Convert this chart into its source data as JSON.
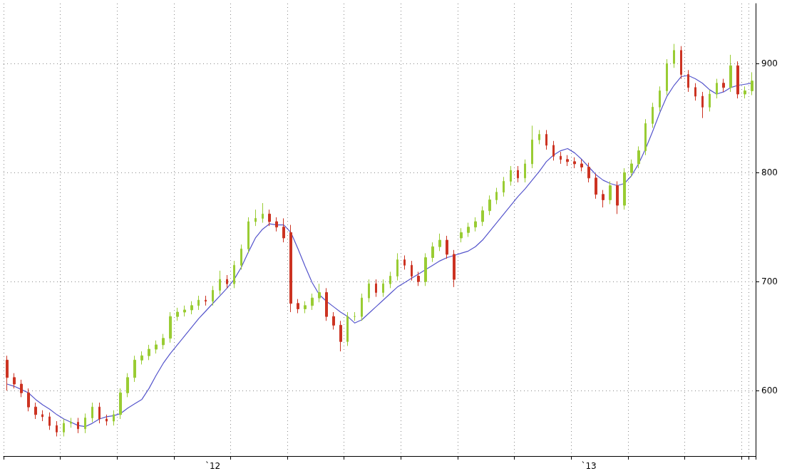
{
  "chart_data": {
    "type": "candlestick",
    "categories": [
      null,
      null,
      null,
      null,
      null,
      null,
      null,
      null,
      null,
      null,
      null,
      null,
      null,
      null,
      null,
      null,
      null,
      null,
      null,
      null,
      null,
      null,
      null,
      null,
      null,
      null,
      null,
      null,
      null,
      "`12",
      null,
      null,
      null,
      null,
      null,
      null,
      null,
      null,
      null,
      null,
      null,
      null,
      null,
      null,
      null,
      null,
      null,
      null,
      null,
      null,
      null,
      null,
      null,
      null,
      null,
      null,
      null,
      null,
      null,
      null,
      null,
      null,
      null,
      null,
      null,
      null,
      null,
      null,
      null,
      null,
      null,
      null,
      null,
      null,
      null,
      null,
      null,
      null,
      null,
      null,
      null,
      null,
      "`13",
      null,
      null,
      null,
      null,
      null,
      null,
      null,
      null,
      null,
      null,
      null,
      null,
      null,
      null,
      null,
      null,
      null,
      null,
      null,
      null,
      null,
      null,
      null
    ],
    "ylim": [
      540,
      955
    ],
    "yticks": [
      600,
      700,
      800,
      900
    ],
    "grid": true,
    "series": [
      {
        "ohlc": [
          [
            628,
            632,
            600,
            612
          ],
          [
            612,
            616,
            602,
            606
          ],
          [
            606,
            610,
            594,
            598
          ],
          [
            598,
            602,
            581,
            585
          ],
          [
            585,
            589,
            574,
            578
          ],
          [
            578,
            582,
            572,
            576
          ],
          [
            576,
            580,
            564,
            568
          ],
          [
            568,
            572,
            558,
            562
          ],
          [
            562,
            574,
            558,
            570
          ],
          [
            570,
            575,
            566,
            571
          ],
          [
            571,
            575,
            561,
            565
          ],
          [
            565,
            579,
            561,
            575
          ],
          [
            575,
            589,
            571,
            585
          ],
          [
            585,
            589,
            570,
            574
          ],
          [
            574,
            578,
            568,
            572
          ],
          [
            572,
            582,
            568,
            578
          ],
          [
            578,
            602,
            574,
            598
          ],
          [
            598,
            616,
            594,
            612
          ],
          [
            612,
            632,
            608,
            628
          ],
          [
            628,
            636,
            624,
            632
          ],
          [
            632,
            642,
            628,
            638
          ],
          [
            638,
            646,
            634,
            642
          ],
          [
            642,
            652,
            638,
            648
          ],
          [
            648,
            672,
            644,
            668
          ],
          [
            668,
            676,
            664,
            672
          ],
          [
            672,
            678,
            668,
            674
          ],
          [
            674,
            682,
            670,
            678
          ],
          [
            678,
            687,
            674,
            683
          ],
          [
            683,
            687,
            678,
            682
          ],
          [
            682,
            696,
            678,
            692
          ],
          [
            692,
            710,
            688,
            702
          ],
          [
            702,
            706,
            694,
            698
          ],
          [
            698,
            719,
            694,
            715
          ],
          [
            715,
            734,
            711,
            730
          ],
          [
            730,
            759,
            726,
            755
          ],
          [
            755,
            766,
            751,
            758
          ],
          [
            758,
            772,
            754,
            762
          ],
          [
            762,
            766,
            751,
            755
          ],
          [
            755,
            759,
            746,
            750
          ],
          [
            750,
            758,
            736,
            740
          ],
          [
            745,
            752,
            672,
            680
          ],
          [
            680,
            684,
            671,
            675
          ],
          [
            675,
            682,
            671,
            678
          ],
          [
            678,
            689,
            674,
            685
          ],
          [
            685,
            698,
            681,
            690
          ],
          [
            690,
            694,
            664,
            668
          ],
          [
            668,
            672,
            656,
            660
          ],
          [
            660,
            664,
            636,
            645
          ],
          [
            645,
            672,
            641,
            668
          ],
          [
            668,
            672,
            664,
            668
          ],
          [
            668,
            689,
            664,
            685
          ],
          [
            685,
            702,
            681,
            698
          ],
          [
            698,
            702,
            686,
            690
          ],
          [
            690,
            702,
            686,
            698
          ],
          [
            698,
            709,
            694,
            705
          ],
          [
            705,
            726,
            701,
            720
          ],
          [
            720,
            724,
            711,
            715
          ],
          [
            715,
            719,
            701,
            705
          ],
          [
            705,
            709,
            696,
            700
          ],
          [
            700,
            726,
            696,
            722
          ],
          [
            722,
            736,
            718,
            732
          ],
          [
            732,
            744,
            728,
            738
          ],
          [
            738,
            742,
            721,
            725
          ],
          [
            725,
            729,
            695,
            702
          ],
          [
            740,
            749,
            736,
            745
          ],
          [
            745,
            754,
            741,
            750
          ],
          [
            750,
            759,
            746,
            755
          ],
          [
            755,
            769,
            751,
            765
          ],
          [
            765,
            779,
            761,
            775
          ],
          [
            775,
            786,
            771,
            782
          ],
          [
            782,
            796,
            778,
            792
          ],
          [
            792,
            806,
            788,
            802
          ],
          [
            802,
            806,
            791,
            795
          ],
          [
            795,
            812,
            791,
            808
          ],
          [
            808,
            843,
            804,
            830
          ],
          [
            830,
            839,
            826,
            835
          ],
          [
            835,
            839,
            821,
            825
          ],
          [
            825,
            829,
            811,
            815
          ],
          [
            815,
            819,
            808,
            812
          ],
          [
            812,
            816,
            806,
            810
          ],
          [
            810,
            814,
            804,
            808
          ],
          [
            808,
            812,
            801,
            805
          ],
          [
            805,
            809,
            791,
            795
          ],
          [
            795,
            799,
            776,
            780
          ],
          [
            780,
            784,
            768,
            775
          ],
          [
            775,
            792,
            771,
            788
          ],
          [
            788,
            792,
            762,
            770
          ],
          [
            770,
            804,
            766,
            800
          ],
          [
            800,
            812,
            796,
            808
          ],
          [
            808,
            824,
            804,
            820
          ],
          [
            820,
            849,
            816,
            845
          ],
          [
            845,
            864,
            841,
            860
          ],
          [
            860,
            879,
            856,
            875
          ],
          [
            875,
            904,
            871,
            900
          ],
          [
            900,
            918,
            896,
            912
          ],
          [
            912,
            916,
            886,
            890
          ],
          [
            890,
            894,
            874,
            878
          ],
          [
            878,
            882,
            866,
            870
          ],
          [
            870,
            874,
            850,
            860
          ],
          [
            860,
            876,
            856,
            872
          ],
          [
            872,
            886,
            868,
            882
          ],
          [
            882,
            886,
            874,
            878
          ],
          [
            878,
            908,
            874,
            898
          ],
          [
            898,
            902,
            868,
            872
          ],
          [
            872,
            879,
            868,
            875
          ],
          [
            875,
            892,
            871,
            884
          ]
        ],
        "colors": [
          "#cc3322",
          "#cc3322",
          "#cc3322",
          "#cc3322",
          "#cc3322",
          "#cc3322",
          "#cc3322",
          "#cc3322",
          "#99cc33",
          "#99cc33",
          "#cc3322",
          "#99cc33",
          "#99cc33",
          "#cc3322",
          "#cc3322",
          "#99cc33",
          "#99cc33",
          "#99cc33",
          "#99cc33",
          "#99cc33",
          "#99cc33",
          "#99cc33",
          "#99cc33",
          "#99cc33",
          "#99cc33",
          "#99cc33",
          "#99cc33",
          "#99cc33",
          "#cc3322",
          "#99cc33",
          "#99cc33",
          "#cc3322",
          "#99cc33",
          "#99cc33",
          "#99cc33",
          "#99cc33",
          "#99cc33",
          "#cc3322",
          "#cc3322",
          "#cc3322",
          "#cc3322",
          "#cc3322",
          "#99cc33",
          "#99cc33",
          "#99cc33",
          "#cc3322",
          "#cc3322",
          "#cc3322",
          "#99cc33",
          "#99cc33",
          "#99cc33",
          "#99cc33",
          "#cc3322",
          "#99cc33",
          "#99cc33",
          "#99cc33",
          "#cc3322",
          "#cc3322",
          "#cc3322",
          "#99cc33",
          "#99cc33",
          "#99cc33",
          "#cc3322",
          "#cc3322",
          "#99cc33",
          "#99cc33",
          "#99cc33",
          "#99cc33",
          "#99cc33",
          "#99cc33",
          "#99cc33",
          "#99cc33",
          "#cc3322",
          "#99cc33",
          "#99cc33",
          "#99cc33",
          "#cc3322",
          "#cc3322",
          "#cc3322",
          "#cc3322",
          "#cc3322",
          "#cc3322",
          "#cc3322",
          "#cc3322",
          "#cc3322",
          "#99cc33",
          "#cc3322",
          "#99cc33",
          "#99cc33",
          "#99cc33",
          "#99cc33",
          "#99cc33",
          "#99cc33",
          "#99cc33",
          "#99cc33",
          "#cc3322",
          "#cc3322",
          "#cc3322",
          "#cc3322",
          "#99cc33",
          "#99cc33",
          "#cc3322",
          "#99cc33",
          "#cc3322",
          "#99cc33",
          "#99cc33"
        ]
      },
      {
        "type": "line",
        "color": "#5555cc",
        "marker": "none",
        "values": [
          606,
          604,
          601,
          598,
          592,
          587,
          583,
          578,
          574,
          571,
          568,
          567,
          570,
          574,
          576,
          577,
          579,
          584,
          588,
          592,
          602,
          614,
          625,
          634,
          642,
          650,
          658,
          666,
          673,
          680,
          687,
          694,
          702,
          713,
          727,
          740,
          748,
          753,
          752,
          752,
          745,
          730,
          714,
          699,
          688,
          682,
          677,
          672,
          668,
          662,
          665,
          671,
          677,
          683,
          689,
          695,
          699,
          703,
          707,
          711,
          715,
          719,
          722,
          724,
          726,
          728,
          732,
          738,
          746,
          754,
          762,
          770,
          778,
          785,
          793,
          801,
          810,
          816,
          820,
          822,
          818,
          812,
          805,
          798,
          793,
          790,
          788,
          790,
          797,
          808,
          822,
          838,
          855,
          870,
          880,
          888,
          889,
          886,
          882,
          876,
          872,
          874,
          878,
          880,
          881,
          882
        ]
      }
    ]
  }
}
